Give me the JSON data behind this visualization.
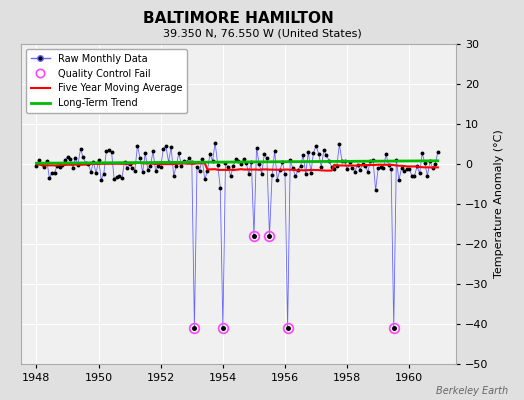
{
  "title": "BALTIMORE HAMILTON",
  "subtitle": "39.350 N, 76.550 W (United States)",
  "ylabel": "Temperature Anomaly (°C)",
  "xlim": [
    1947.5,
    1961.5
  ],
  "ylim": [
    -50,
    30
  ],
  "yticks": [
    -50,
    -40,
    -30,
    -20,
    -10,
    0,
    10,
    20,
    30
  ],
  "xticks": [
    1948,
    1950,
    1952,
    1954,
    1956,
    1958,
    1960
  ],
  "background_color": "#e0e0e0",
  "plot_bg_color": "#f0f0f0",
  "grid_color": "#ffffff",
  "raw_line_color": "#6666ff",
  "raw_dot_color": "#000000",
  "qc_fail_color": "#ff44ff",
  "moving_avg_color": "#ff0000",
  "trend_color": "#00bb00",
  "watermark": "Berkeley Earth",
  "qc_fail_times": [
    1953.083,
    1954.0,
    1955.0,
    1955.5,
    1956.083,
    1959.5
  ],
  "qc_fail_depths": [
    -41,
    -41,
    -18,
    -18,
    -41,
    -41
  ],
  "start_year": 1948,
  "end_year": 1961
}
